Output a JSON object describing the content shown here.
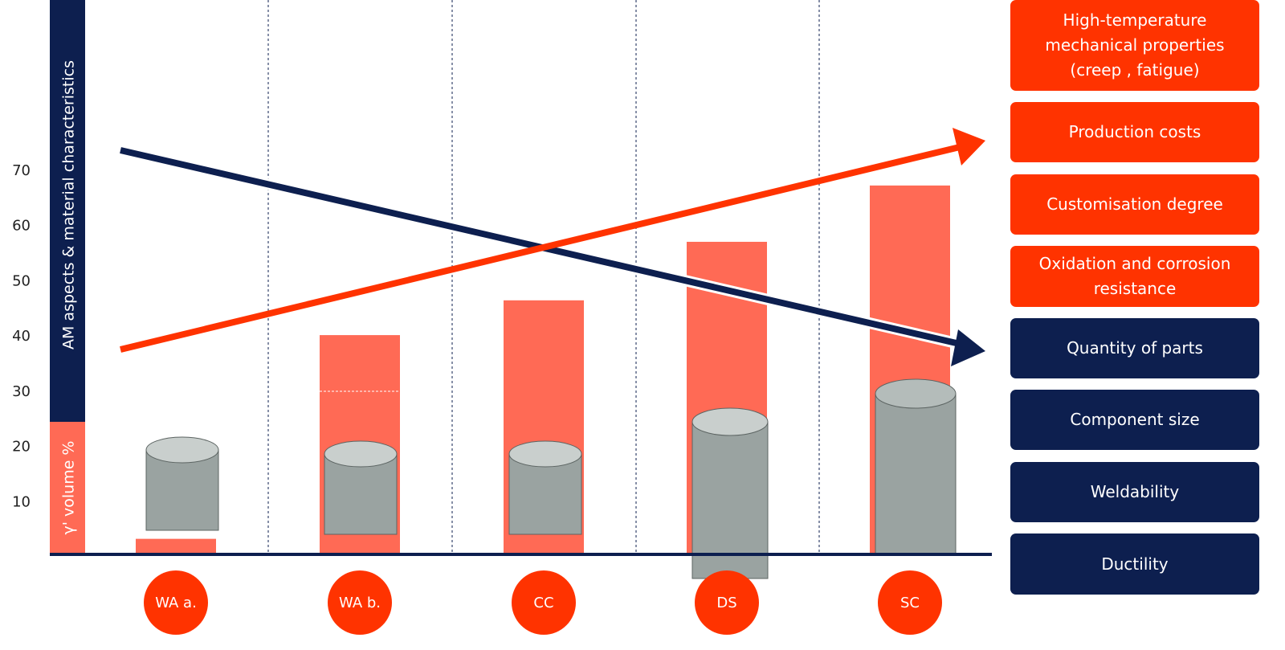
{
  "chart_data": {
    "type": "bar",
    "y_label": "AM aspects & material characteristics",
    "y_sub_label": "γ' volume %",
    "categories": [
      "WA a.",
      "WA b.",
      "CC",
      "DS",
      "SC"
    ],
    "values": [
      3.4,
      40.3,
      46.6,
      57.2,
      67.4
    ],
    "color": "#ff6a55",
    "ylim": [
      0,
      101
    ],
    "yticks": [
      10,
      20,
      30,
      40,
      50,
      60,
      70
    ],
    "grid": false
  },
  "panel": {
    "increasing_color": "#ff3300",
    "decreasing_color": "#0d1f4f",
    "increasing": [
      "High-temperature mechanical properties (creep , fatigue)",
      "Production costs",
      "Customisation degree",
      "Oxidation and corrosion resistance"
    ],
    "decreasing": [
      "Quantity of parts",
      "Component size",
      "Weldability",
      "Ductility"
    ]
  }
}
